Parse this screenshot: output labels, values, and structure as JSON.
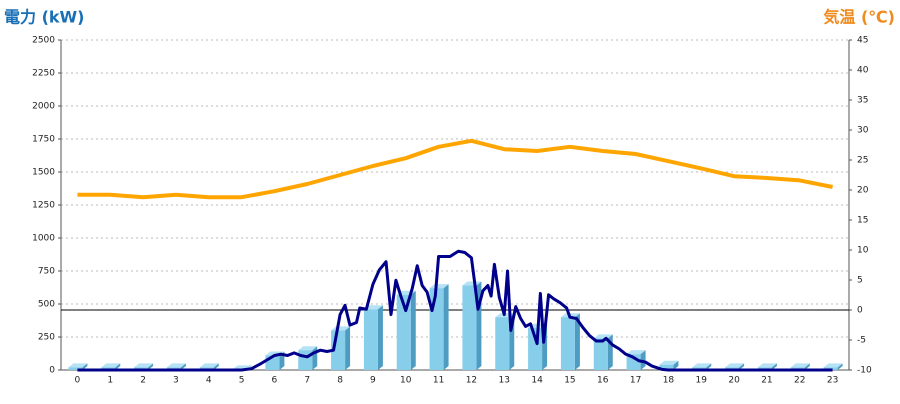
{
  "chart_data": {
    "type": "bar_line_combo",
    "y_title": "電力 (kW)",
    "y2_title": "気温 (℃)",
    "categories": [
      "0",
      "1",
      "2",
      "3",
      "4",
      "5",
      "6",
      "7",
      "8",
      "9",
      "10",
      "11",
      "12",
      "13",
      "14",
      "15",
      "16",
      "17",
      "18",
      "19",
      "20",
      "21",
      "22",
      "23"
    ],
    "series": [
      {
        "type": "bar",
        "color": "#87ceeb",
        "values": [
          20,
          20,
          20,
          20,
          20,
          5,
          110,
          150,
          300,
          460,
          570,
          620,
          640,
          400,
          320,
          400,
          240,
          120,
          40,
          20,
          20,
          20,
          20,
          20
        ]
      },
      {
        "type": "line",
        "color": "#00008b",
        "x": [
          0,
          1,
          2,
          3,
          4,
          5,
          5.3,
          5.6,
          6,
          6.2,
          6.4,
          6.6,
          6.8,
          7,
          7.2,
          7.4,
          7.6,
          7.8,
          8,
          8.15,
          8.3,
          8.5,
          8.6,
          8.8,
          9,
          9.2,
          9.4,
          9.55,
          9.7,
          9.85,
          10,
          10.2,
          10.35,
          10.5,
          10.65,
          10.8,
          10.9,
          11,
          11.2,
          11.35,
          11.6,
          11.8,
          12,
          12.1,
          12.2,
          12.35,
          12.5,
          12.6,
          12.7,
          12.85,
          13,
          13.1,
          13.2,
          13.35,
          13.5,
          13.65,
          13.8,
          14,
          14.1,
          14.2,
          14.35,
          14.5,
          14.7,
          14.9,
          15,
          15.2,
          15.4,
          15.6,
          15.8,
          16,
          16.1,
          16.3,
          16.5,
          16.7,
          16.9,
          17.1,
          17.3,
          17.5,
          17.8,
          18,
          19,
          20,
          21,
          22,
          23
        ],
        "values": [
          0,
          0,
          0,
          0,
          0,
          0,
          10,
          50,
          110,
          120,
          110,
          130,
          110,
          100,
          130,
          150,
          140,
          150,
          420,
          490,
          340,
          360,
          470,
          460,
          650,
          760,
          820,
          420,
          680,
          560,
          450,
          620,
          790,
          640,
          590,
          450,
          560,
          860,
          860,
          860,
          900,
          890,
          850,
          660,
          460,
          600,
          640,
          560,
          800,
          550,
          420,
          750,
          300,
          480,
          390,
          330,
          350,
          200,
          580,
          210,
          570,
          540,
          510,
          470,
          400,
          390,
          320,
          260,
          220,
          220,
          240,
          190,
          160,
          120,
          100,
          70,
          60,
          30,
          5,
          0,
          0,
          0,
          0,
          0,
          0
        ]
      },
      {
        "type": "line",
        "axis": "y2",
        "color": "#ffa500",
        "values": [
          19.2,
          19.2,
          18.8,
          19.2,
          18.8,
          18.8,
          19.8,
          21,
          22.5,
          24,
          25.3,
          27.2,
          28.2,
          26.8,
          26.5,
          27.2,
          26.5,
          26,
          24.8,
          23.6,
          22.3,
          22,
          21.6,
          20.5
        ]
      }
    ],
    "ylim": [
      0,
      2500
    ],
    "yticks": [
      0,
      250,
      500,
      750,
      1000,
      1250,
      1500,
      1750,
      2000,
      2250,
      2500
    ],
    "y2lim": [
      -10,
      45
    ],
    "y2ticks": [
      -10,
      -5,
      0,
      5,
      10,
      15,
      20,
      25,
      30,
      35,
      40,
      45
    ],
    "reference_line": {
      "axis": "y2",
      "value": 0
    },
    "grid": true
  }
}
